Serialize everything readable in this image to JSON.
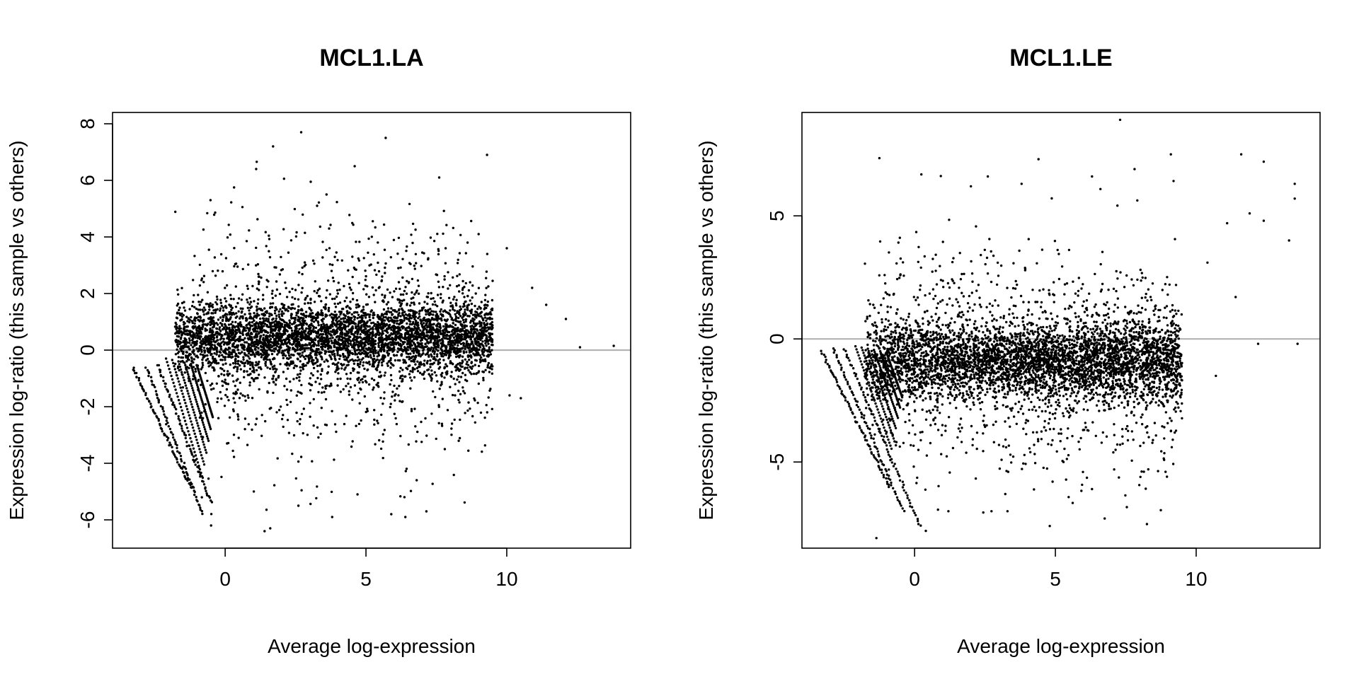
{
  "chart_data": [
    {
      "type": "scatter",
      "title": "MCL1.LA",
      "xlabel": "Average log-expression",
      "ylabel": "Expression log-ratio (this sample vs others)",
      "xlim": [
        -4,
        14.4
      ],
      "ylim": [
        -7,
        8.4
      ],
      "xticks": [
        0,
        5,
        10
      ],
      "yticks": [
        -6,
        -4,
        -2,
        0,
        2,
        4,
        6,
        8
      ],
      "reference_line_y": 0,
      "reference_line_color": "#b3b3b3",
      "point_color": "#000000",
      "bulk": {
        "center_x": 4.0,
        "center_y": 0.45,
        "x_range": [
          -1.8,
          9.5
        ],
        "y_spread": 0.55
      },
      "low_expression_streaks": [
        {
          "x": [
            -3.3,
            -1.2
          ],
          "y": [
            -0.6,
            -4.9
          ]
        },
        {
          "x": [
            -2.8,
            -0.8
          ],
          "y": [
            -0.6,
            -5.8
          ]
        },
        {
          "x": [
            -2.4,
            -0.5
          ],
          "y": [
            -0.5,
            -5.4
          ]
        }
      ],
      "outliers": [
        {
          "x": 2.7,
          "y": 7.7
        },
        {
          "x": 5.7,
          "y": 7.5
        },
        {
          "x": 1.7,
          "y": 7.2
        },
        {
          "x": 9.3,
          "y": 6.9
        },
        {
          "x": 4.6,
          "y": 6.5
        },
        {
          "x": 7.6,
          "y": 6.1
        },
        {
          "x": 1.1,
          "y": 6.4
        },
        {
          "x": 3.6,
          "y": 5.5
        },
        {
          "x": 9.0,
          "y": 4.1
        },
        {
          "x": 10.0,
          "y": 3.6
        },
        {
          "x": 10.9,
          "y": 2.2
        },
        {
          "x": 11.4,
          "y": 1.6
        },
        {
          "x": 12.1,
          "y": 1.1
        },
        {
          "x": 13.8,
          "y": 0.15
        },
        {
          "x": 12.6,
          "y": 0.1
        },
        {
          "x": 10.1,
          "y": -1.6
        },
        {
          "x": 10.5,
          "y": -1.7
        },
        {
          "x": 7.8,
          "y": -3.5
        },
        {
          "x": 6.8,
          "y": -4.6
        },
        {
          "x": 5.9,
          "y": -5.8
        },
        {
          "x": 6.4,
          "y": -5.9
        },
        {
          "x": 3.8,
          "y": -5.9
        },
        {
          "x": 1.4,
          "y": -6.4
        },
        {
          "x": 1.6,
          "y": -6.3
        },
        {
          "x": -0.5,
          "y": -6.2
        },
        {
          "x": 4.7,
          "y": -5.1
        },
        {
          "x": 2.6,
          "y": -5.5
        }
      ]
    },
    {
      "type": "scatter",
      "title": "MCL1.LE",
      "xlabel": "Average log-expression",
      "ylabel": "Expression log-ratio (this sample vs others)",
      "xlim": [
        -4,
        14.4
      ],
      "ylim": [
        -8.5,
        9.2
      ],
      "xticks": [
        0,
        5,
        10
      ],
      "yticks": [
        -5,
        0,
        5
      ],
      "reference_line_y": 0,
      "reference_line_color": "#b3b3b3",
      "point_color": "#000000",
      "bulk": {
        "center_x": 4.0,
        "center_y": -0.9,
        "x_range": [
          -1.8,
          9.5
        ],
        "y_spread": 0.75
      },
      "low_expression_streaks": [
        {
          "x": [
            -3.3,
            -0.9
          ],
          "y": [
            -0.5,
            -6.0
          ]
        },
        {
          "x": [
            -2.9,
            -0.4
          ],
          "y": [
            -0.4,
            -7.0
          ]
        },
        {
          "x": [
            -2.5,
            0.2
          ],
          "y": [
            -0.4,
            -7.6
          ]
        }
      ],
      "outliers": [
        {
          "x": 7.3,
          "y": 8.9
        },
        {
          "x": 4.4,
          "y": 7.3
        },
        {
          "x": 9.1,
          "y": 7.5
        },
        {
          "x": 11.6,
          "y": 7.5
        },
        {
          "x": 12.4,
          "y": 7.2
        },
        {
          "x": 13.5,
          "y": 6.3
        },
        {
          "x": 13.5,
          "y": 5.7
        },
        {
          "x": 2.6,
          "y": 6.6
        },
        {
          "x": 6.3,
          "y": 6.6
        },
        {
          "x": 3.8,
          "y": 6.3
        },
        {
          "x": 2.0,
          "y": 6.2
        },
        {
          "x": 13.3,
          "y": 4.0
        },
        {
          "x": 11.9,
          "y": 5.1
        },
        {
          "x": 12.4,
          "y": 4.8
        },
        {
          "x": 11.1,
          "y": 4.7
        },
        {
          "x": 10.4,
          "y": 3.1
        },
        {
          "x": 11.4,
          "y": 1.7
        },
        {
          "x": 13.6,
          "y": -0.2
        },
        {
          "x": 12.2,
          "y": -0.2
        },
        {
          "x": 10.7,
          "y": -1.5
        },
        {
          "x": 8.3,
          "y": -5.3
        },
        {
          "x": 7.3,
          "y": -4.3
        },
        {
          "x": 6.3,
          "y": -6.1
        },
        {
          "x": 4.9,
          "y": -5.8
        },
        {
          "x": 4.8,
          "y": -7.6
        },
        {
          "x": 3.3,
          "y": -7.0
        },
        {
          "x": 0.4,
          "y": -7.8
        },
        {
          "x": 1.2,
          "y": -7.0
        }
      ]
    }
  ]
}
